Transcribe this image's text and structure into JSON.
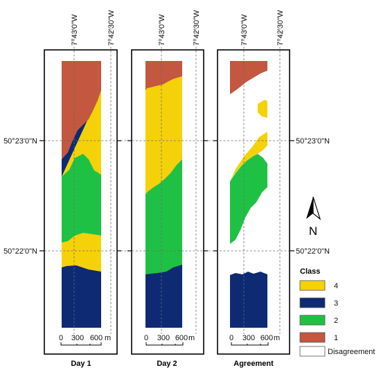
{
  "panels": [
    {
      "title": "Day 1"
    },
    {
      "title": "Day 2"
    },
    {
      "title": "Agreement"
    }
  ],
  "coords": {
    "lon1": "7°43'0\"W",
    "lon2": "7°42'30\"W",
    "lat1": "50°23'0\"N",
    "lat2": "50°22'0\"N"
  },
  "scale": {
    "ticks": [
      "0",
      "300",
      "600"
    ],
    "unit": "m"
  },
  "north": {
    "label": "N"
  },
  "legend": {
    "title": "Class",
    "items": [
      {
        "label": "4",
        "color": "#f5d10a"
      },
      {
        "label": "3",
        "color": "#0d2a73"
      },
      {
        "label": "2",
        "color": "#1fc145"
      },
      {
        "label": "1",
        "color": "#c3573f"
      },
      {
        "label": "Disagreement",
        "color": "#ffffff"
      }
    ]
  },
  "colors": {
    "class4": "#f5d10a",
    "class3": "#0d2a73",
    "class2": "#1fc145",
    "class1": "#c3573f",
    "disagreement": "#ffffff"
  }
}
